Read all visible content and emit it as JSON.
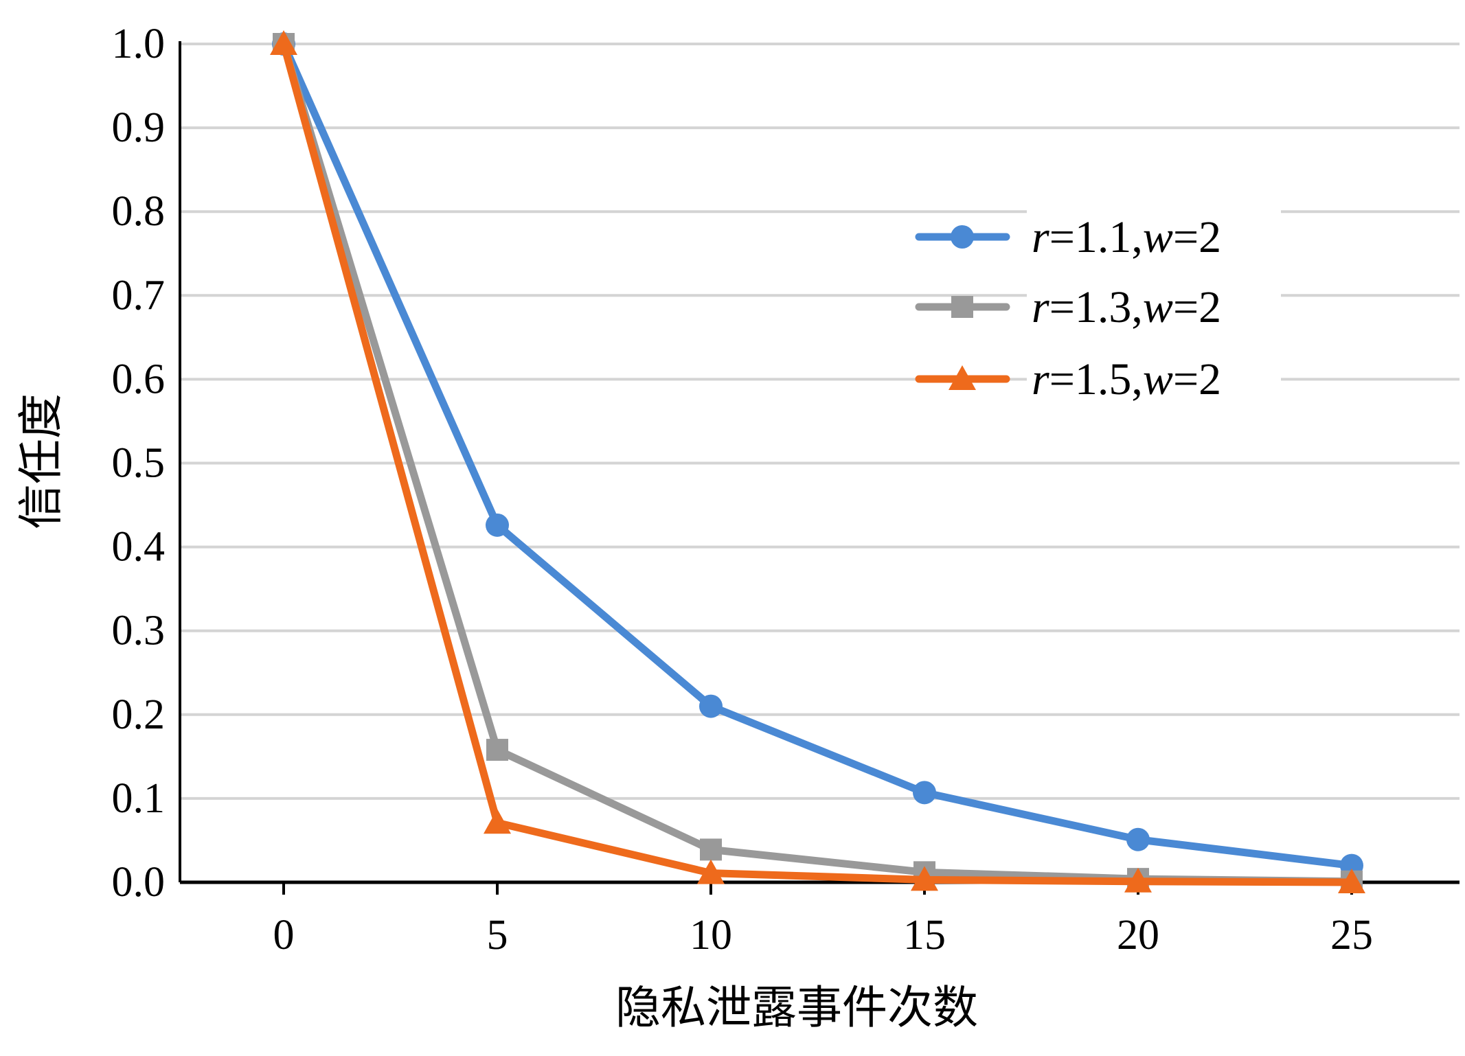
{
  "chart_data": {
    "type": "line",
    "title": "",
    "xlabel": "隐私泄露事件次数",
    "ylabel": "信任度",
    "x": [
      0,
      5,
      10,
      15,
      20,
      25
    ],
    "xticks": [
      "0",
      "5",
      "10",
      "15",
      "20",
      "25"
    ],
    "yticks": [
      "0.0",
      "0.1",
      "0.2",
      "0.3",
      "0.4",
      "0.5",
      "0.6",
      "0.7",
      "0.8",
      "0.9",
      "1.0"
    ],
    "ylim": [
      0,
      1.0
    ],
    "grid": "horizontal",
    "legend_position": "upper-right",
    "series": [
      {
        "name": "r=1.1,w=2",
        "label_parts": {
          "r": "r",
          "r_value": "=1.1,",
          "w": "w",
          "w_value": "=2"
        },
        "color": "#4a89d4",
        "marker": "circle",
        "values": [
          1.0,
          0.426,
          0.21,
          0.107,
          0.051,
          0.02
        ]
      },
      {
        "name": "r=1.3,w=2",
        "label_parts": {
          "r": "r",
          "r_value": "=1.3,",
          "w": "w",
          "w_value": "=2"
        },
        "color": "#999999",
        "marker": "square",
        "values": [
          1.0,
          0.158,
          0.039,
          0.012,
          0.004,
          0.001
        ]
      },
      {
        "name": "r=1.5,w=2",
        "label_parts": {
          "r": "r",
          "r_value": "=1.5,",
          "w": "w",
          "w_value": "=2"
        },
        "color": "#ee6a1c",
        "marker": "triangle",
        "values": [
          1.0,
          0.071,
          0.011,
          0.003,
          0.001,
          0.0
        ]
      }
    ]
  }
}
